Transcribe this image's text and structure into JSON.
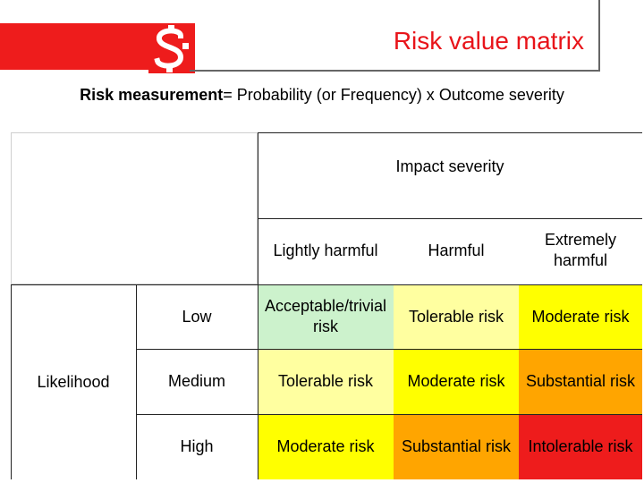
{
  "header": {
    "title": "Risk value matrix",
    "colors": {
      "bar": "#ee1c1c",
      "title": "#e8141a"
    },
    "logo": "s-logo-icon"
  },
  "formula": {
    "bold": "Risk measurement",
    "rest": "= Probability (or Frequency) x Outcome severity"
  },
  "matrix": {
    "impact_header": "Impact severity",
    "likelihood_label": "Likelihood",
    "columns": [
      "Lightly harmful",
      "Harmful",
      "Extremely harmful"
    ],
    "rows": [
      {
        "label": "Low",
        "cells": [
          {
            "text": "Acceptable/trivial risk",
            "color": "#ccf2cc"
          },
          {
            "text": "Tolerable risk",
            "color": "#ffffa0"
          },
          {
            "text": "Moderate risk",
            "color": "#ffff00"
          }
        ]
      },
      {
        "label": "Medium",
        "cells": [
          {
            "text": "Tolerable risk",
            "color": "#ffffa0"
          },
          {
            "text": "Moderate risk",
            "color": "#ffff00"
          },
          {
            "text": "Substantial risk",
            "color": "#ffa500"
          }
        ]
      },
      {
        "label": "High",
        "cells": [
          {
            "text": "Moderate risk",
            "color": "#ffff00"
          },
          {
            "text": "Substantial risk",
            "color": "#ffa500"
          },
          {
            "text": "Intolerable risk",
            "color": "#ee1c1c"
          }
        ]
      }
    ]
  }
}
